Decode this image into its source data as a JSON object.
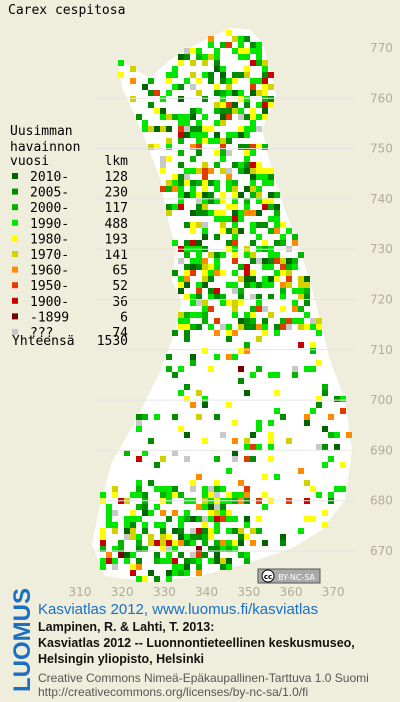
{
  "title": "Carex cespitosa",
  "legend": {
    "heading": [
      "Uusimman",
      "havainnon",
      "vuosi"
    ],
    "count_heading": "lkm",
    "entries": [
      {
        "label": "2010-",
        "count": 128,
        "color": "#006400"
      },
      {
        "label": "2005-",
        "count": 230,
        "color": "#008c00"
      },
      {
        "label": "2000-",
        "count": 117,
        "color": "#00b400"
      },
      {
        "label": "1990-",
        "count": 488,
        "color": "#00e600"
      },
      {
        "label": "1980-",
        "count": 193,
        "color": "#ffff00"
      },
      {
        "label": "1970-",
        "count": 141,
        "color": "#d2d200"
      },
      {
        "label": "1960-",
        "count": 65,
        "color": "#ff8c00"
      },
      {
        "label": "1950-",
        "count": 52,
        "color": "#e03c00"
      },
      {
        "label": "1900-",
        "count": 36,
        "color": "#c80000"
      },
      {
        "label": "-1899",
        "count": 6,
        "color": "#780000"
      },
      {
        "label": "???",
        "count": 74,
        "color": "#c8c8c8"
      }
    ],
    "total_label": "Yhteensä",
    "total": 1530
  },
  "map": {
    "northing_labels": [
      770,
      760,
      750,
      740,
      730,
      720,
      710,
      700,
      690,
      680,
      670
    ],
    "easting_labels": [
      310,
      320,
      330,
      340,
      350,
      360,
      370
    ]
  },
  "badge": {
    "icon": "cc",
    "text": "BY-NC-SA"
  },
  "logo": "LUOMUS",
  "citation": {
    "link": "Kasviatlas 2012, www.luomus.fi/kasviatlas",
    "lines": [
      "Lampinen, R. & Lahti, T. 2013:",
      "Kasviatlas 2012 -- Luonnontieteellinen keskusmuseo,",
      "Helsingin yliopisto, Helsinki"
    ]
  },
  "license": [
    "Creative Commons Nimeä-Epäkaupallinen-Tarttuva 1.0 Suomi",
    "http://creativecommons.org/licenses/by-nc-sa/1.0/fi"
  ]
}
